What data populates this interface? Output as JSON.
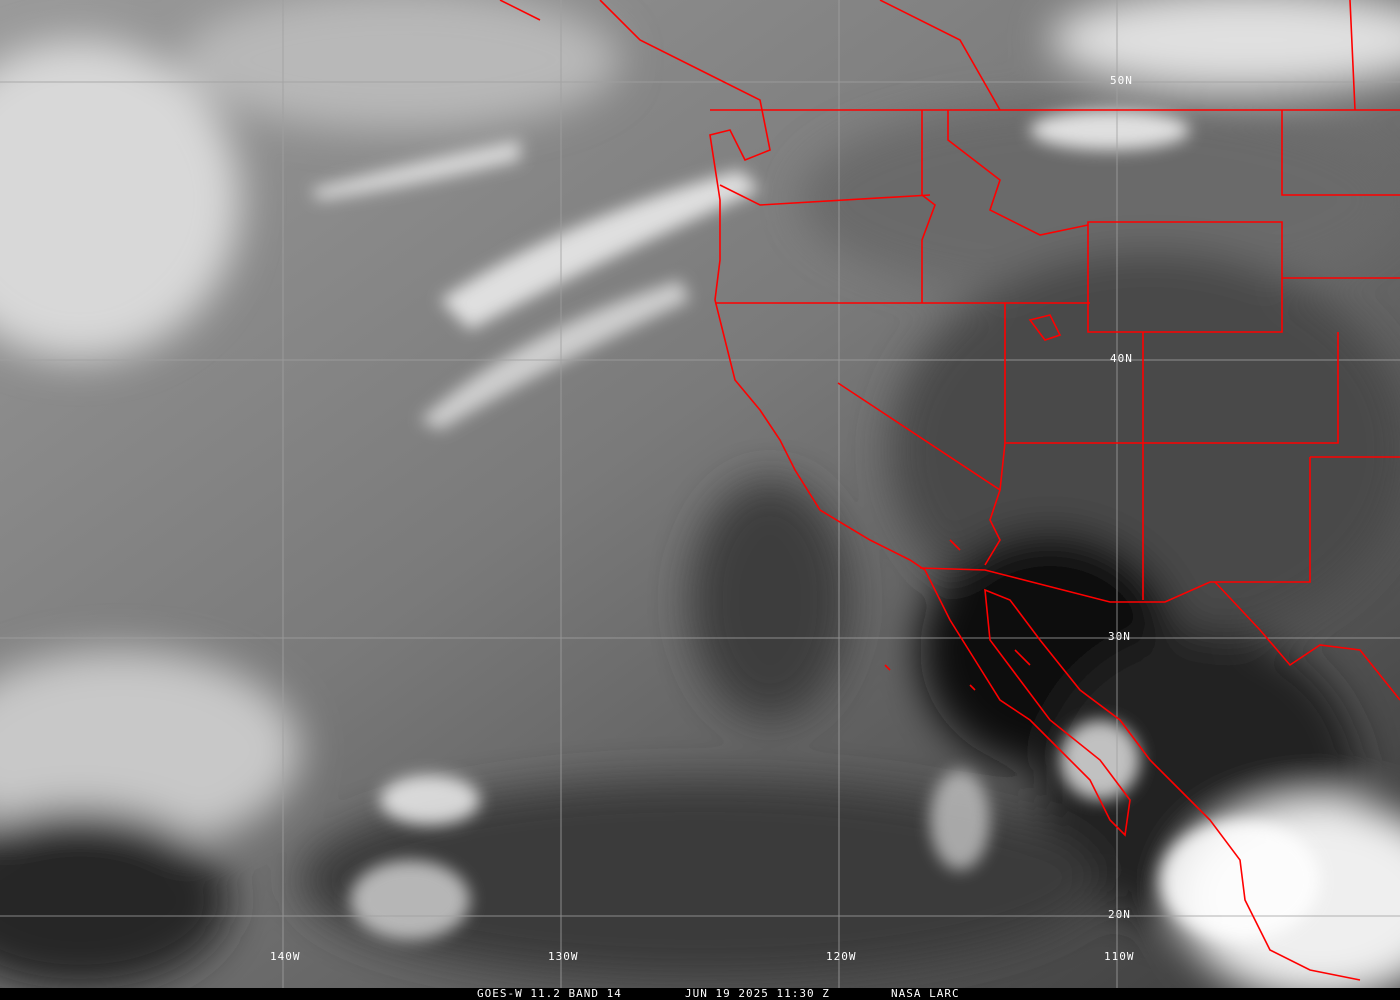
{
  "caption": {
    "product": "GOES-W 11.2 BAND 14",
    "datetime": "JUN 19 2025 11:30 Z",
    "source": "NASA LARC"
  },
  "latitude_labels": [
    "50N",
    "40N",
    "30N",
    "20N"
  ],
  "longitude_labels": [
    "140W",
    "130W",
    "120W",
    "110W"
  ],
  "colors": {
    "borders": "#ff0000",
    "grid": "#a0a0a0",
    "label_text": "#ffffff",
    "caption_background": "#000000"
  }
}
